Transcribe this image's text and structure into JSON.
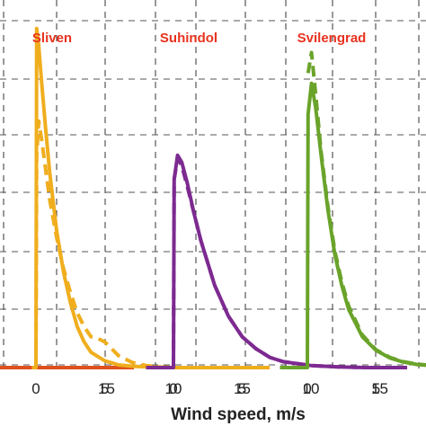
{
  "chart_data": {
    "type": "line",
    "xlabel": "Wind speed, m/s",
    "ylabel": "",
    "grid": true,
    "panels": [
      {
        "name": "",
        "color": "#e0501e",
        "xlim": [
          -2,
          17
        ],
        "x_ticks": [
          15
        ],
        "series": [
          {
            "style": "solid",
            "x": [
              0,
              17
            ],
            "y": [
              0,
              0
            ]
          }
        ]
      },
      {
        "name": "Sliven",
        "color": "#f0ae1e",
        "xlim": [
          -2,
          17
        ],
        "x_ticks": [
          0,
          5,
          10,
          15
        ],
        "series": [
          {
            "style": "solid",
            "x": [
              -0.3,
              0,
              0.05,
              0.2,
              0.4,
              0.7,
              1,
              1.5,
              2,
              2.5,
              3,
              3.5,
              4,
              5,
              6,
              7,
              8,
              10,
              12,
              15,
              17
            ],
            "y": [
              0,
              0,
              0.99,
              0.94,
              0.84,
              0.7,
              0.57,
              0.4,
              0.28,
              0.19,
              0.12,
              0.075,
              0.045,
              0.02,
              0.008,
              0.004,
              0.002,
              0,
              0,
              0,
              0
            ]
          },
          {
            "style": "dashed",
            "x": [
              0,
              0.05,
              0.2,
              0.4,
              0.7,
              1,
              1.5,
              2,
              2.5,
              3,
              3.5,
              4,
              4.5,
              5,
              5.5,
              6,
              7,
              8,
              9,
              10
            ],
            "y": [
              0,
              0.62,
              0.72,
              0.67,
              0.58,
              0.49,
              0.38,
              0.29,
              0.22,
              0.16,
              0.12,
              0.09,
              0.085,
              0.075,
              0.055,
              0.035,
              0.015,
              0.006,
              0.002,
              0
            ]
          }
        ]
      },
      {
        "name": "Suhindol",
        "color": "#7d2a91",
        "xlim": [
          -2,
          17
        ],
        "x_ticks": [
          0,
          5,
          10,
          15
        ],
        "series": [
          {
            "style": "solid",
            "x": [
              -2,
              0,
              0.05,
              0.3,
              0.6,
              1,
              1.5,
              2,
              3,
              4,
              5,
              6,
              7,
              8,
              10,
              12,
              14,
              17
            ],
            "y": [
              0,
              0,
              0.55,
              0.62,
              0.6,
              0.54,
              0.45,
              0.37,
              0.24,
              0.15,
              0.09,
              0.055,
              0.03,
              0.017,
              0.006,
              0.002,
              0,
              0
            ]
          },
          {
            "style": "dashed",
            "x": [
              0,
              0.05,
              0.3,
              0.6,
              1,
              1.5,
              2,
              3,
              4,
              5,
              6,
              7,
              8,
              10,
              12,
              14
            ],
            "y": [
              0,
              0.55,
              0.61,
              0.59,
              0.53,
              0.45,
              0.37,
              0.24,
              0.15,
              0.09,
              0.055,
              0.03,
              0.017,
              0.006,
              0.002,
              0
            ]
          }
        ]
      },
      {
        "name": "Svilengrad",
        "color": "#6aa32a",
        "xlim": [
          -2,
          17
        ],
        "x_ticks": [
          0,
          5,
          10,
          15
        ],
        "series": [
          {
            "style": "solid",
            "x": [
              -2,
              0,
              0.05,
              0.3,
              0.6,
              1,
              1.5,
              2,
              2.5,
              3,
              4,
              5,
              6,
              7,
              8,
              10,
              12,
              14,
              17
            ],
            "y": [
              0,
              0,
              0.74,
              0.83,
              0.76,
              0.62,
              0.46,
              0.33,
              0.24,
              0.17,
              0.09,
              0.05,
              0.028,
              0.016,
              0.009,
              0.003,
              0.001,
              0,
              0
            ]
          },
          {
            "style": "dashed",
            "x": [
              0.05,
              0.3,
              0.6,
              1,
              1.5,
              2,
              2.5,
              3,
              4,
              5,
              6,
              7,
              8,
              10,
              12
            ],
            "y": [
              0.86,
              0.92,
              0.8,
              0.63,
              0.47,
              0.34,
              0.25,
              0.18,
              0.095,
              0.052,
              0.03,
              0.017,
              0.01,
              0.003,
              0
            ]
          }
        ]
      }
    ]
  }
}
